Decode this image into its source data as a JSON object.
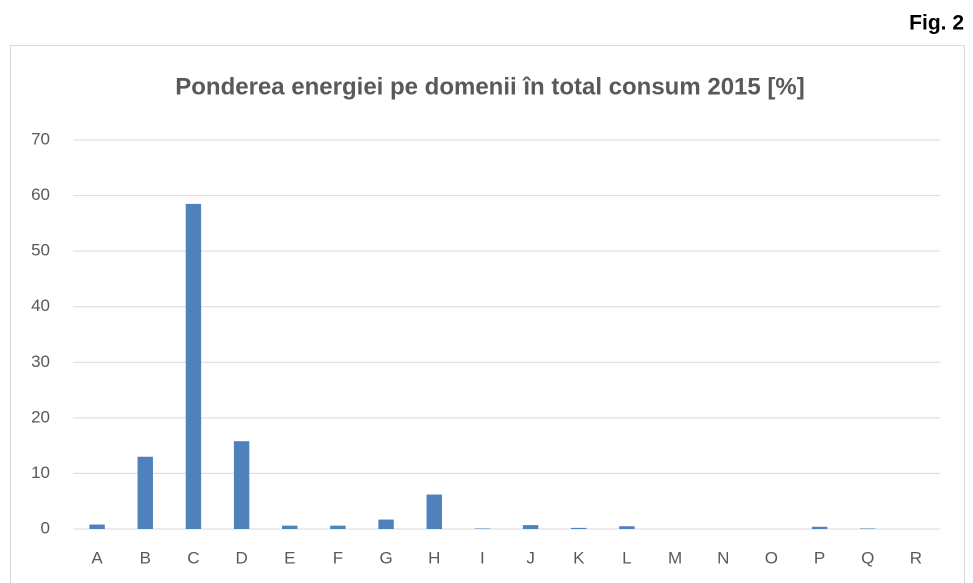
{
  "figure_label": "Fig. 2",
  "chart_data": {
    "type": "bar",
    "title": "Ponderea energiei pe domenii în total consum 2015 [%]",
    "categories": [
      "A",
      "B",
      "C",
      "D",
      "E",
      "F",
      "G",
      "H",
      "I",
      "J",
      "K",
      "L",
      "M",
      "N",
      "O",
      "P",
      "Q",
      "R"
    ],
    "values": [
      0.8,
      13,
      58.5,
      15.8,
      0.6,
      0.6,
      1.7,
      6.2,
      0.1,
      0.7,
      0.2,
      0.5,
      0,
      0,
      0,
      0.4,
      0.1,
      0
    ],
    "color": "#4f81bd",
    "ylim": [
      0,
      70
    ],
    "yticks": [
      0,
      10,
      20,
      30,
      40,
      50,
      60,
      70
    ],
    "grid": true
  }
}
